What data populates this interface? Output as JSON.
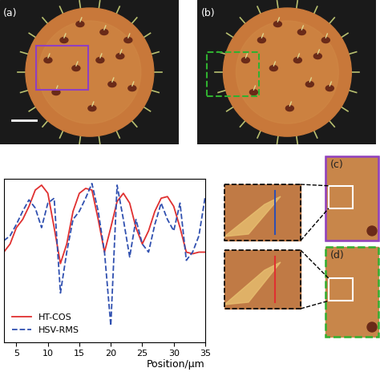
{
  "chart_data": {
    "type": "line",
    "x_label": "Position/μm",
    "x": [
      3,
      4,
      5,
      6,
      7,
      8,
      9,
      10,
      11,
      12,
      13,
      14,
      15,
      16,
      17,
      18,
      19,
      20,
      21,
      22,
      23,
      24,
      25,
      26,
      27,
      28,
      29,
      30,
      31,
      32,
      33,
      34,
      35
    ],
    "series": [
      {
        "name": "HT-COS",
        "color": "#e03030",
        "line_style": "solid",
        "values": [
          0.55,
          0.6,
          0.7,
          0.75,
          0.83,
          0.93,
          0.96,
          0.91,
          0.7,
          0.48,
          0.6,
          0.8,
          0.91,
          0.94,
          0.93,
          0.75,
          0.55,
          0.7,
          0.86,
          0.91,
          0.85,
          0.7,
          0.6,
          0.68,
          0.8,
          0.88,
          0.89,
          0.83,
          0.7,
          0.55,
          0.54,
          0.55,
          0.55
        ]
      },
      {
        "name": "HSV-RMS",
        "color": "#3050b0",
        "line_style": "dashed",
        "values": [
          0.62,
          0.65,
          0.72,
          0.8,
          0.87,
          0.82,
          0.7,
          0.85,
          0.88,
          0.3,
          0.55,
          0.75,
          0.8,
          0.88,
          0.97,
          0.8,
          0.55,
          0.1,
          0.96,
          0.75,
          0.52,
          0.75,
          0.6,
          0.55,
          0.72,
          0.85,
          0.75,
          0.68,
          0.85,
          0.5,
          0.55,
          0.65,
          0.89
        ]
      }
    ],
    "xlim": [
      3,
      35
    ],
    "xticks": [
      5,
      10,
      15,
      20,
      25,
      30,
      35
    ],
    "ylim": [
      0,
      1
    ],
    "tick_labels": "x",
    "legend": "lower left",
    "grid": false
  },
  "panel_labels": [
    "(a)",
    "(b)",
    "(c)",
    "(d)"
  ]
}
